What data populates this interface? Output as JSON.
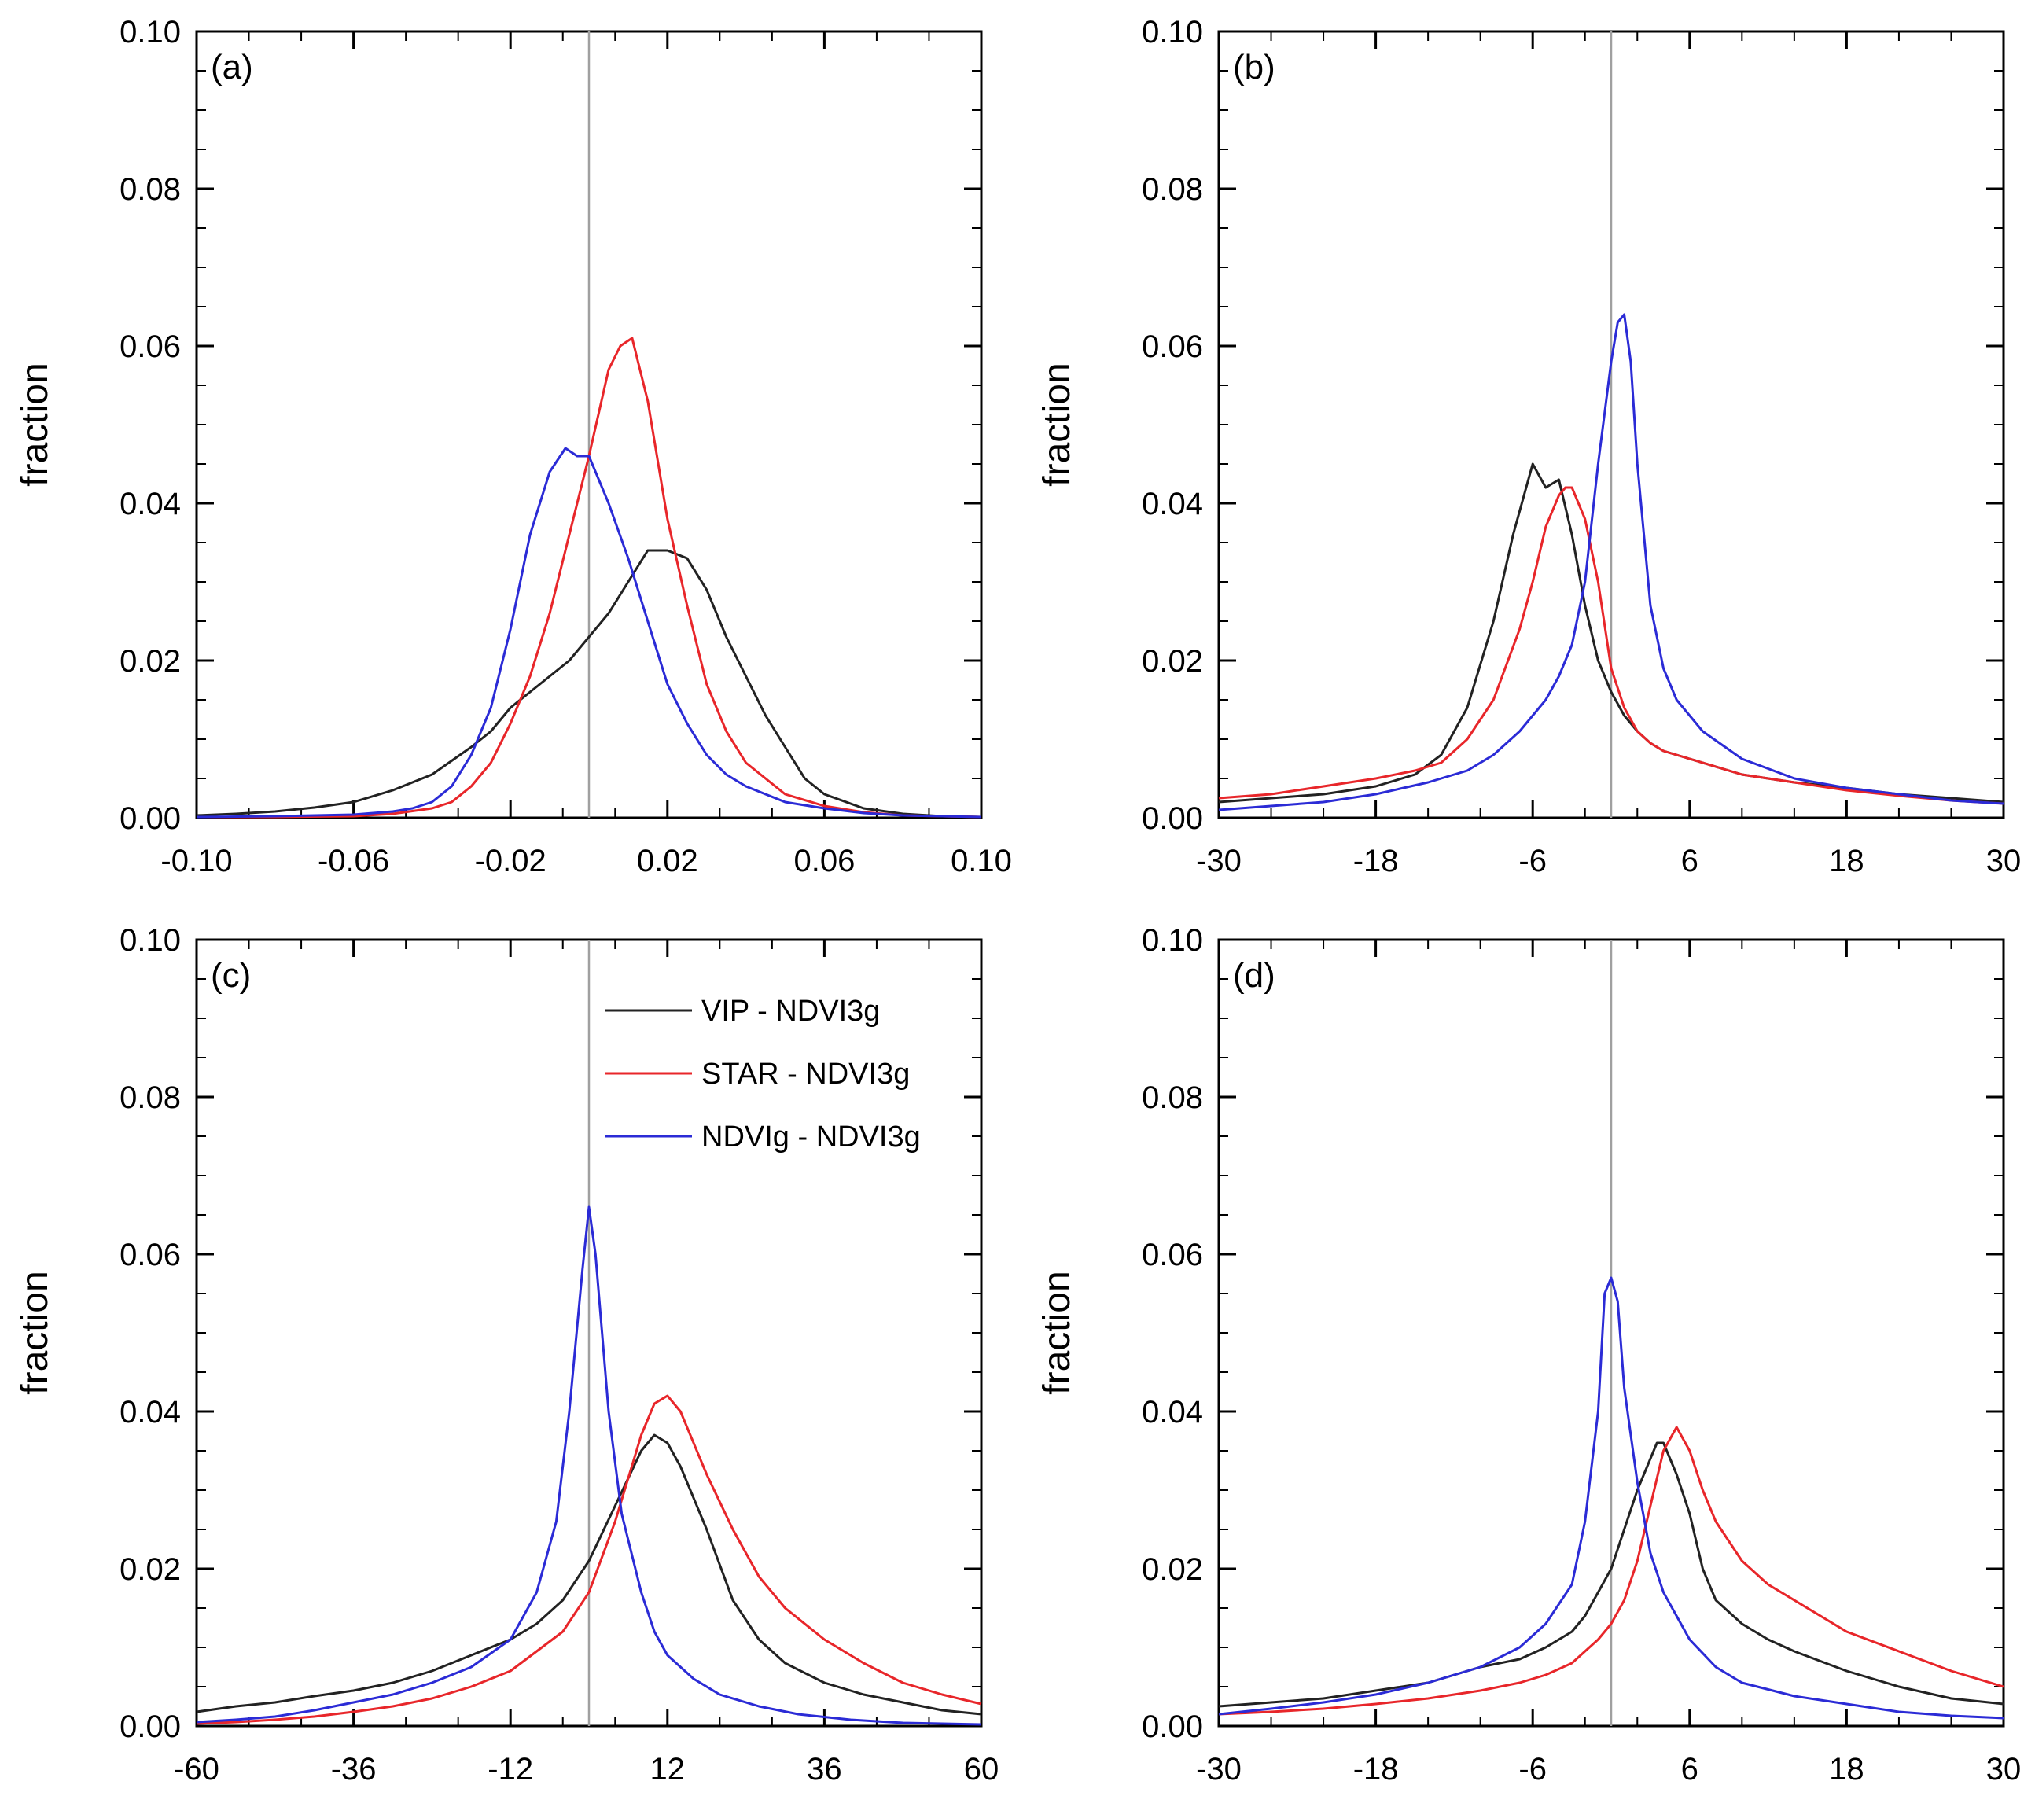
{
  "chart_data": [
    {
      "type": "line",
      "panel_label": "(a)",
      "ylabel": "fraction",
      "xlim": [
        -0.1,
        0.1
      ],
      "ylim": [
        0.0,
        0.1
      ],
      "xticks": [
        "-0.10",
        "-0.06",
        "-0.02",
        "0.02",
        "0.06",
        "0.10"
      ],
      "yticks": [
        "0.00",
        "0.02",
        "0.04",
        "0.06",
        "0.08",
        "0.10"
      ],
      "reference_line_x": 0,
      "series": [
        {
          "color": "#222222",
          "x": [
            -0.1,
            -0.09,
            -0.08,
            -0.07,
            -0.06,
            -0.05,
            -0.04,
            -0.03,
            -0.025,
            -0.02,
            -0.015,
            -0.01,
            -0.005,
            0,
            0.005,
            0.01,
            0.015,
            0.02,
            0.025,
            0.03,
            0.035,
            0.04,
            0.045,
            0.05,
            0.055,
            0.06,
            0.07,
            0.08,
            0.09,
            0.1
          ],
          "y": [
            0.0003,
            0.0005,
            0.0008,
            0.0013,
            0.002,
            0.0035,
            0.0055,
            0.009,
            0.011,
            0.014,
            0.016,
            0.018,
            0.02,
            0.023,
            0.026,
            0.03,
            0.034,
            0.034,
            0.033,
            0.029,
            0.023,
            0.018,
            0.013,
            0.009,
            0.005,
            0.003,
            0.0012,
            0.0005,
            0.0002,
            0.0001
          ]
        },
        {
          "color": "#e8262a",
          "x": [
            -0.1,
            -0.08,
            -0.06,
            -0.05,
            -0.04,
            -0.035,
            -0.03,
            -0.025,
            -0.02,
            -0.015,
            -0.01,
            -0.005,
            0,
            0.005,
            0.008,
            0.011,
            0.015,
            0.02,
            0.025,
            0.03,
            0.035,
            0.04,
            0.05,
            0.06,
            0.07,
            0.08,
            0.1
          ],
          "y": [
            0.0001,
            0.0001,
            0.0002,
            0.0005,
            0.0012,
            0.002,
            0.004,
            0.007,
            0.012,
            0.018,
            0.026,
            0.036,
            0.046,
            0.057,
            0.06,
            0.061,
            0.053,
            0.038,
            0.027,
            0.017,
            0.011,
            0.007,
            0.003,
            0.0015,
            0.0007,
            0.0003,
            0.0001
          ]
        },
        {
          "color": "#2b2bd6",
          "x": [
            -0.1,
            -0.08,
            -0.06,
            -0.05,
            -0.045,
            -0.04,
            -0.035,
            -0.03,
            -0.025,
            -0.02,
            -0.015,
            -0.01,
            -0.006,
            -0.003,
            0,
            0.005,
            0.01,
            0.015,
            0.02,
            0.025,
            0.03,
            0.035,
            0.04,
            0.05,
            0.06,
            0.07,
            0.08,
            0.1
          ],
          "y": [
            0.0001,
            0.0002,
            0.0004,
            0.0008,
            0.0012,
            0.002,
            0.004,
            0.008,
            0.014,
            0.024,
            0.036,
            0.044,
            0.047,
            0.046,
            0.046,
            0.04,
            0.033,
            0.025,
            0.017,
            0.012,
            0.008,
            0.0055,
            0.004,
            0.002,
            0.0012,
            0.0006,
            0.0003,
            0.0001
          ]
        }
      ]
    },
    {
      "type": "line",
      "panel_label": "(b)",
      "ylabel": "fraction",
      "xlim": [
        -30,
        30
      ],
      "ylim": [
        0.0,
        0.1
      ],
      "xticks": [
        "-30",
        "-18",
        "-6",
        "6",
        "18",
        "30"
      ],
      "yticks": [
        "0.00",
        "0.02",
        "0.04",
        "0.06",
        "0.08",
        "0.10"
      ],
      "reference_line_x": 0,
      "series": [
        {
          "color": "#222222",
          "x": [
            -30,
            -26,
            -22,
            -18,
            -15,
            -13,
            -11,
            -9,
            -7.5,
            -6,
            -5,
            -4,
            -3,
            -2,
            -1,
            0,
            1,
            2,
            3,
            4,
            6,
            10,
            14,
            18,
            22,
            26,
            30
          ],
          "y": [
            0.002,
            0.0025,
            0.003,
            0.004,
            0.0055,
            0.008,
            0.014,
            0.025,
            0.036,
            0.045,
            0.042,
            0.043,
            0.036,
            0.027,
            0.02,
            0.016,
            0.013,
            0.011,
            0.0095,
            0.0085,
            0.0075,
            0.0055,
            0.0045,
            0.0038,
            0.003,
            0.0025,
            0.002
          ]
        },
        {
          "color": "#e8262a",
          "x": [
            -30,
            -26,
            -22,
            -18,
            -15,
            -13,
            -11,
            -9,
            -7,
            -6,
            -5,
            -4,
            -3.5,
            -3,
            -2,
            -1,
            0,
            1,
            2,
            3,
            4,
            6,
            10,
            14,
            18,
            22,
            26,
            30
          ],
          "y": [
            0.0025,
            0.003,
            0.004,
            0.005,
            0.006,
            0.007,
            0.01,
            0.015,
            0.024,
            0.03,
            0.037,
            0.041,
            0.042,
            0.042,
            0.038,
            0.03,
            0.019,
            0.014,
            0.011,
            0.0095,
            0.0085,
            0.0075,
            0.0055,
            0.0045,
            0.0035,
            0.0028,
            0.0022,
            0.0018
          ]
        },
        {
          "color": "#2b2bd6",
          "x": [
            -30,
            -26,
            -22,
            -18,
            -14,
            -11,
            -9,
            -7,
            -5,
            -4,
            -3,
            -2,
            -1,
            0,
            0.5,
            1,
            1.5,
            2,
            3,
            4,
            5,
            7,
            10,
            14,
            18,
            22,
            26,
            30
          ],
          "y": [
            0.001,
            0.0015,
            0.002,
            0.003,
            0.0045,
            0.006,
            0.008,
            0.011,
            0.015,
            0.018,
            0.022,
            0.03,
            0.045,
            0.058,
            0.063,
            0.064,
            0.058,
            0.045,
            0.027,
            0.019,
            0.015,
            0.011,
            0.0075,
            0.005,
            0.0038,
            0.003,
            0.0022,
            0.0018
          ]
        }
      ]
    },
    {
      "type": "line",
      "panel_label": "(c)",
      "ylabel": "fraction",
      "xlim": [
        -60,
        60
      ],
      "ylim": [
        0.0,
        0.1
      ],
      "xticks": [
        "-60",
        "-36",
        "-12",
        "12",
        "36",
        "60"
      ],
      "yticks": [
        "0.00",
        "0.02",
        "0.04",
        "0.06",
        "0.08",
        "0.10"
      ],
      "reference_line_x": 0,
      "legend": [
        {
          "label": "VIP - NDVI3g",
          "color": "#222222"
        },
        {
          "label": "STAR - NDVI3g",
          "color": "#e8262a"
        },
        {
          "label": "NDVIg - NDVI3g",
          "color": "#2b2bd6"
        }
      ],
      "series": [
        {
          "color": "#222222",
          "x": [
            -60,
            -54,
            -48,
            -42,
            -36,
            -30,
            -24,
            -18,
            -12,
            -8,
            -4,
            0,
            4,
            8,
            10,
            12,
            14,
            18,
            22,
            26,
            30,
            36,
            42,
            48,
            54,
            60
          ],
          "y": [
            0.0018,
            0.0025,
            0.003,
            0.0038,
            0.0045,
            0.0055,
            0.007,
            0.009,
            0.011,
            0.013,
            0.016,
            0.021,
            0.028,
            0.035,
            0.037,
            0.036,
            0.033,
            0.025,
            0.016,
            0.011,
            0.008,
            0.0055,
            0.004,
            0.003,
            0.002,
            0.0015
          ]
        },
        {
          "color": "#e8262a",
          "x": [
            -60,
            -54,
            -48,
            -42,
            -36,
            -30,
            -24,
            -18,
            -12,
            -8,
            -4,
            0,
            4,
            8,
            10,
            12,
            14,
            18,
            22,
            26,
            30,
            36,
            42,
            48,
            54,
            60
          ],
          "y": [
            0.0003,
            0.0005,
            0.0008,
            0.0012,
            0.0018,
            0.0025,
            0.0035,
            0.005,
            0.007,
            0.0095,
            0.012,
            0.017,
            0.026,
            0.037,
            0.041,
            0.042,
            0.04,
            0.032,
            0.025,
            0.019,
            0.015,
            0.011,
            0.008,
            0.0055,
            0.004,
            0.0028
          ]
        },
        {
          "color": "#2b2bd6",
          "x": [
            -60,
            -54,
            -48,
            -42,
            -36,
            -30,
            -24,
            -18,
            -12,
            -8,
            -5,
            -3,
            -1,
            0,
            1,
            3,
            5,
            8,
            10,
            12,
            16,
            20,
            26,
            32,
            40,
            48,
            60
          ],
          "y": [
            0.0005,
            0.0008,
            0.0012,
            0.002,
            0.003,
            0.004,
            0.0055,
            0.0075,
            0.011,
            0.017,
            0.026,
            0.04,
            0.058,
            0.066,
            0.06,
            0.04,
            0.027,
            0.017,
            0.012,
            0.009,
            0.006,
            0.004,
            0.0025,
            0.0015,
            0.0008,
            0.0004,
            0.0002
          ]
        }
      ]
    },
    {
      "type": "line",
      "panel_label": "(d)",
      "ylabel": "fraction",
      "xlim": [
        -30,
        30
      ],
      "ylim": [
        0.0,
        0.1
      ],
      "xticks": [
        "-30",
        "-18",
        "-6",
        "6",
        "18",
        "30"
      ],
      "yticks": [
        "0.00",
        "0.02",
        "0.04",
        "0.06",
        "0.08",
        "0.10"
      ],
      "reference_line_x": 0,
      "series": [
        {
          "color": "#222222",
          "x": [
            -30,
            -26,
            -22,
            -18,
            -14,
            -10,
            -7,
            -5,
            -3,
            -2,
            -1,
            0,
            1,
            2,
            3,
            3.5,
            4,
            5,
            6,
            7,
            8,
            10,
            12,
            14,
            18,
            22,
            26,
            30
          ],
          "y": [
            0.0025,
            0.003,
            0.0035,
            0.0045,
            0.0055,
            0.0075,
            0.0085,
            0.01,
            0.012,
            0.014,
            0.017,
            0.02,
            0.025,
            0.03,
            0.034,
            0.036,
            0.036,
            0.032,
            0.027,
            0.02,
            0.016,
            0.013,
            0.011,
            0.0095,
            0.007,
            0.005,
            0.0035,
            0.0028
          ]
        },
        {
          "color": "#e8262a",
          "x": [
            -30,
            -26,
            -22,
            -18,
            -14,
            -10,
            -7,
            -5,
            -3,
            -2,
            -1,
            0,
            1,
            2,
            3,
            4,
            5,
            6,
            7,
            8,
            10,
            12,
            14,
            18,
            22,
            26,
            30
          ],
          "y": [
            0.0015,
            0.0018,
            0.0022,
            0.0028,
            0.0035,
            0.0045,
            0.0055,
            0.0065,
            0.008,
            0.0095,
            0.011,
            0.013,
            0.016,
            0.021,
            0.028,
            0.035,
            0.038,
            0.035,
            0.03,
            0.026,
            0.021,
            0.018,
            0.016,
            0.012,
            0.0095,
            0.007,
            0.005
          ]
        },
        {
          "color": "#2b2bd6",
          "x": [
            -30,
            -26,
            -22,
            -18,
            -14,
            -10,
            -7,
            -5,
            -3,
            -2,
            -1,
            -0.5,
            0,
            0.5,
            1,
            2,
            3,
            4,
            6,
            8,
            10,
            14,
            18,
            22,
            26,
            30
          ],
          "y": [
            0.0015,
            0.0022,
            0.003,
            0.004,
            0.0055,
            0.0075,
            0.01,
            0.013,
            0.018,
            0.026,
            0.04,
            0.055,
            0.057,
            0.054,
            0.043,
            0.031,
            0.022,
            0.017,
            0.011,
            0.0075,
            0.0055,
            0.0038,
            0.0028,
            0.0018,
            0.0013,
            0.001
          ]
        }
      ]
    }
  ]
}
